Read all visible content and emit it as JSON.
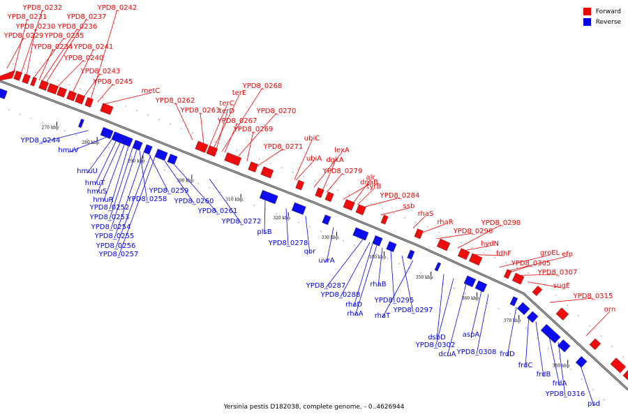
{
  "legend": {
    "forward": {
      "label": "Forward",
      "color": "#ee0000"
    },
    "reverse": {
      "label": "Reverse",
      "color": "#0000ee"
    }
  },
  "caption": "Yersinia pestis D182038, complete genome. - 0..4626944",
  "ticks": [
    "270 kbp",
    "280 kbp",
    "290 kbp",
    "300 kbp",
    "310 kbp",
    "320 kbp",
    "330 kbp",
    "340 kbp",
    "350 kbp",
    "360 kbp",
    "370 kbp",
    "380 kbp"
  ],
  "forward_labels": [
    "YPD8_0242",
    "YPD8_0232",
    "YPD8_0231",
    "YPD8_0237",
    "YPD8_0230",
    "YPD8_0236",
    "YPD8_0229",
    "YPD8_0235",
    "YPD8_0234",
    "YPD8_0241",
    "YPD8_0240",
    "YPD8_0243",
    "YPD8_0245",
    "metC",
    "YPD8_0262",
    "YPD8_0263",
    "terC",
    "terE",
    "terD",
    "YPD8_0268",
    "YPD8_0267",
    "YPD8_0270",
    "YPD8_0269",
    "YPD8_0271",
    "ubiC",
    "ubiA",
    "lexA",
    "dgkA",
    "YPD8_0279",
    "dnaB",
    "alr",
    "tyrB",
    "YPD8_0284",
    "ssb",
    "rhaS",
    "rhaR",
    "YPD8_0296",
    "YPD8_0298",
    "hydN",
    "fdhF",
    "groEL",
    "efp",
    "YPD8_0305",
    "YPD8_0307",
    "sugE",
    "YPD8_0315",
    "orn"
  ],
  "reverse_labels": [
    "YPD8_0244",
    "hmuV",
    "hmuU",
    "hmuT",
    "hmuS",
    "hmuR",
    "YPD8_0252",
    "YPD8_0258",
    "YPD8_0259",
    "YPD8_0253",
    "YPD8_0260",
    "YPD8_0254",
    "YPD8_0261",
    "YPD8_0255",
    "YPD8_0272",
    "YPD8_0256",
    "YPD8_0257",
    "plsB",
    "YPD8_0278",
    "qor",
    "uvrA",
    "YPD8_0287",
    "YPD8_0288",
    "rhaB",
    "rhaD",
    "YPD8_0295",
    "rhaA",
    "YPD8_0297",
    "rhaT",
    "dsbD",
    "YPD8_0302",
    "aspA",
    "dcuA",
    "YPD8_0308",
    "frdD",
    "frdC",
    "frdB",
    "frdA",
    "YPD8_0316",
    "psd"
  ]
}
